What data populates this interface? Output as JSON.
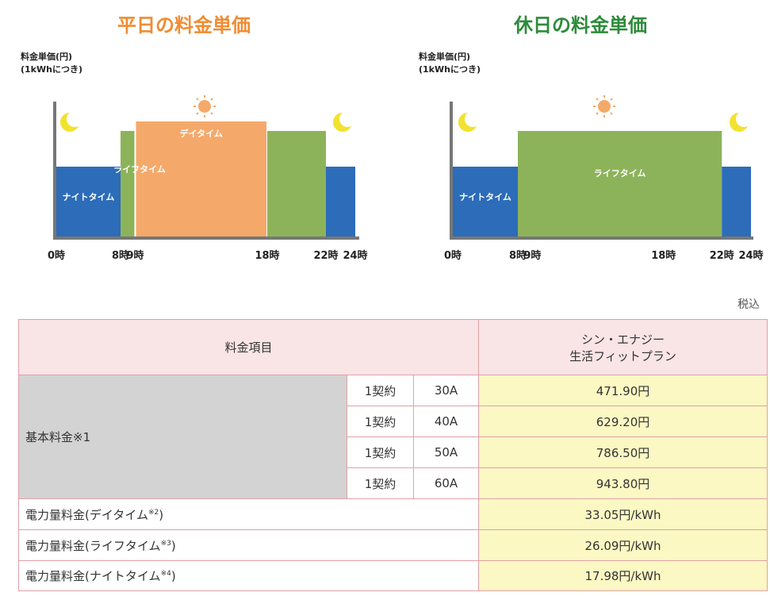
{
  "weekday": {
    "title": "平日の料金単価",
    "title_color": "#f08c32",
    "ylabel_line1": "料金単価(円)",
    "ylabel_line2": "(1kWhにつき)",
    "bands": [
      {
        "label": "ナイトタイム",
        "start_hour": 0,
        "end_hour": 8,
        "level": "low",
        "color": "#2c6cb8"
      },
      {
        "label": "ライフタイム",
        "start_hour": 8,
        "end_hour": 9,
        "level": "mid",
        "color": "#8db35a"
      },
      {
        "label": "デイタイム",
        "start_hour": 9,
        "end_hour": 18,
        "level": "high",
        "color": "#f4a96a"
      },
      {
        "label": "",
        "start_hour": 18,
        "end_hour": 22,
        "level": "mid",
        "color": "#8db35a"
      },
      {
        "label": "",
        "start_hour": 22,
        "end_hour": 24,
        "level": "low",
        "color": "#2c6cb8"
      }
    ],
    "ticks": [
      "0時",
      "8時",
      "9時",
      "18時",
      "22時",
      "24時"
    ]
  },
  "holiday": {
    "title": "休日の料金単価",
    "title_color": "#2e8b3a",
    "ylabel_line1": "料金単価(円)",
    "ylabel_line2": "(1kWhにつき)",
    "bands": [
      {
        "label": "ナイトタイム",
        "start_hour": 0,
        "end_hour": 8,
        "level": "low",
        "color": "#2c6cb8"
      },
      {
        "label": "ライフタイム",
        "start_hour": 8,
        "end_hour": 22,
        "level": "mid",
        "color": "#8db35a"
      },
      {
        "label": "",
        "start_hour": 22,
        "end_hour": 24,
        "level": "low",
        "color": "#2c6cb8"
      }
    ],
    "ticks": [
      "0時",
      "8時",
      "9時",
      "18時",
      "22時",
      "24時"
    ]
  },
  "tax_note": "税込",
  "table": {
    "header_item": "料金項目",
    "header_plan_line1": "シン・エナジー",
    "header_plan_line2": "生活フィットプラン",
    "basic_label": "基本料金※1",
    "basic_rows": [
      {
        "unit": "1契約",
        "amp": "30A",
        "price": "471.90円"
      },
      {
        "unit": "1契約",
        "amp": "40A",
        "price": "629.20円"
      },
      {
        "unit": "1契約",
        "amp": "50A",
        "price": "786.50円"
      },
      {
        "unit": "1契約",
        "amp": "60A",
        "price": "943.80円"
      }
    ],
    "energy_rows": [
      {
        "label": "電力量料金(デイタイム",
        "note": "※2",
        "close": ")",
        "price": "33.05円/kWh"
      },
      {
        "label": "電力量料金(ライフタイム",
        "note": "※3",
        "close": ")",
        "price": "26.09円/kWh"
      },
      {
        "label": "電力量料金(ナイトタイム",
        "note": "※4",
        "close": ")",
        "price": "17.98円/kWh"
      }
    ]
  }
}
